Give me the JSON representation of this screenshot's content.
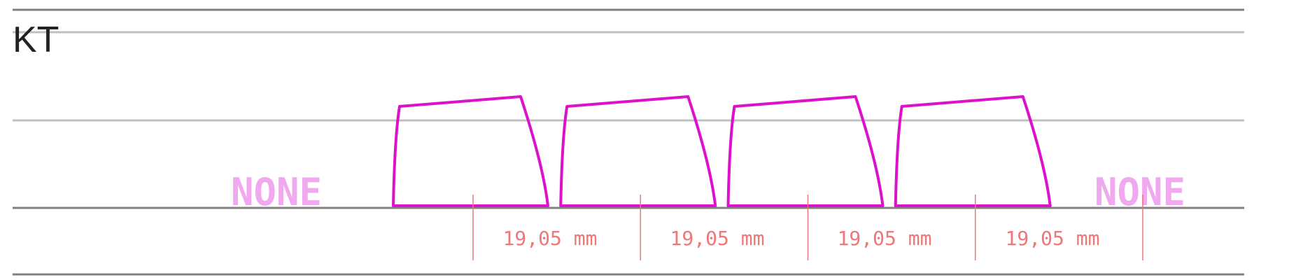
{
  "title": "KT",
  "left_label": "NONE",
  "right_label": "NONE",
  "key_count": 4,
  "dimensions": [
    {
      "text": "19,05 mm"
    },
    {
      "text": "19,05 mm"
    },
    {
      "text": "19,05 mm"
    },
    {
      "text": "19,05 mm"
    }
  ],
  "colors": {
    "key_outline": "#dd11cc",
    "none_label": "#f0a8ee",
    "dimension": "#ee7777",
    "rule_dark": "#808080",
    "rule_light": "#c0c0c0"
  }
}
